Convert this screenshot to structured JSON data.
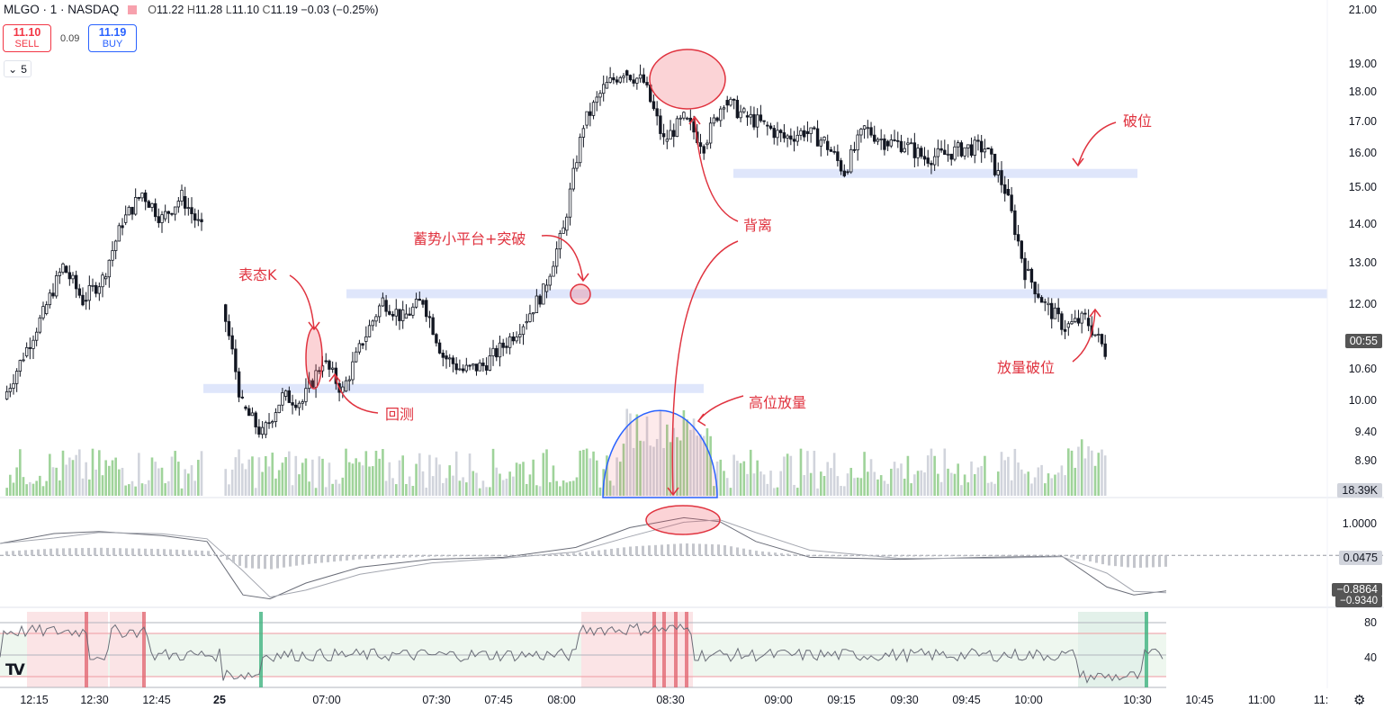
{
  "header": {
    "symbol": "MLGO · 1 · NASDAQ",
    "open_label": "O",
    "open": "11.22",
    "high_label": "H",
    "high": "11.28",
    "low_label": "L",
    "low": "11.10",
    "close_label": "C",
    "close": "11.19",
    "change": "−0.03 (−0.25%)"
  },
  "trade": {
    "sell_price": "11.10",
    "sell_label": "SELL",
    "spread": "0.09",
    "buy_price": "11.19",
    "buy_label": "BUY"
  },
  "collapse": {
    "icon": "chevron-down-icon",
    "count": "5"
  },
  "logo": "TV",
  "colors": {
    "up": "#26a69a",
    "down": "#ef5350",
    "candle": "#131722",
    "vol_up": "#9fd39a",
    "vol_down": "#d1d4dc",
    "annotation": "#e0333f",
    "level_band": "#dfe6fb",
    "blue_circle": "#2962ff"
  },
  "price_axis": {
    "ticks": [
      "21.00",
      "19.00",
      "18.00",
      "17.00",
      "16.00",
      "15.00",
      "14.00",
      "13.00",
      "12.00",
      "10.60",
      "10.00",
      "9.40",
      "8.90"
    ],
    "current_time_badge": "00:55",
    "volume_badge": "18.39K"
  },
  "macd_axis": {
    "ticks": [
      "1.0000"
    ],
    "hist_badge": "0.0475",
    "macd_badge": "−0.8864",
    "signal_badge": "−0.9340"
  },
  "rsi_axis": {
    "ticks": [
      "80",
      "40"
    ]
  },
  "time_axis": {
    "ticks": [
      "12:15",
      "12:30",
      "12:45",
      "25",
      "07:00",
      "07:30",
      "07:45",
      "08:00",
      "08:30",
      "09:00",
      "09:15",
      "09:30",
      "09:45",
      "10:00",
      "10:30",
      "10:45",
      "11:00",
      "11:"
    ]
  },
  "annotations": {
    "biaotai": "表态K",
    "huice": "回测",
    "xushi": "蓄势小平台+突破",
    "beili": "背离",
    "gaowei": "高位放量",
    "powei": "破位",
    "fangliang": "放量破位"
  },
  "chart_data": {
    "type": "candlestick",
    "symbol": "MLGO",
    "interval": "1",
    "exchange": "NASDAQ",
    "price_ylim": [
      8.6,
      21.0
    ],
    "price_scale": "log",
    "key_levels": [
      10.45,
      12.45,
      15.55
    ],
    "session_close_path": [
      [
        "12:05",
        10.25
      ],
      [
        "12:10",
        11.1
      ],
      [
        "12:15",
        12.0
      ],
      [
        "12:20",
        13.1
      ],
      [
        "12:25",
        12.3
      ],
      [
        "12:30",
        12.8
      ],
      [
        "12:35",
        14.2
      ],
      [
        "12:40",
        15.0
      ],
      [
        "12:45",
        14.3
      ],
      [
        "12:50",
        14.9
      ],
      [
        "12:55",
        14.0
      ],
      [
        "06:58",
        12.2
      ],
      [
        "07:00",
        10.1
      ],
      [
        "07:05",
        9.6
      ],
      [
        "07:10",
        10.3
      ],
      [
        "07:15",
        10.2
      ],
      [
        "07:20",
        11.0
      ],
      [
        "07:25",
        10.4
      ],
      [
        "07:30",
        11.4
      ],
      [
        "07:35",
        12.3
      ],
      [
        "07:40",
        11.9
      ],
      [
        "07:45",
        12.3
      ],
      [
        "07:50",
        11.1
      ],
      [
        "07:55",
        10.8
      ],
      [
        "08:00",
        10.9
      ],
      [
        "08:05",
        11.3
      ],
      [
        "08:10",
        11.8
      ],
      [
        "08:15",
        12.5
      ],
      [
        "08:20",
        14.0
      ],
      [
        "08:25",
        17.0
      ],
      [
        "08:30",
        18.2
      ],
      [
        "08:35",
        18.8
      ],
      [
        "08:40",
        18.4
      ],
      [
        "08:45",
        16.5
      ],
      [
        "08:50",
        17.2
      ],
      [
        "08:55",
        16.4
      ],
      [
        "09:00",
        17.8
      ],
      [
        "09:05",
        17.3
      ],
      [
        "09:10",
        17.0
      ],
      [
        "09:15",
        16.6
      ],
      [
        "09:20",
        16.8
      ],
      [
        "09:25",
        16.5
      ],
      [
        "09:30",
        15.6
      ],
      [
        "09:35",
        16.9
      ],
      [
        "09:40",
        16.5
      ],
      [
        "09:45",
        16.4
      ],
      [
        "09:50",
        16.0
      ],
      [
        "09:55",
        16.1
      ],
      [
        "10:00",
        16.3
      ],
      [
        "10:05",
        16.3
      ],
      [
        "10:10",
        15.1
      ],
      [
        "10:15",
        13.0
      ],
      [
        "10:20",
        12.2
      ],
      [
        "10:25",
        11.7
      ],
      [
        "10:30",
        11.9
      ],
      [
        "10:35",
        11.2
      ]
    ],
    "macd_ylim": [
      -1.2,
      1.3
    ],
    "macd_last": {
      "hist": 0.0475,
      "macd": -0.8864,
      "signal": -0.934
    },
    "rsi_ylim": [
      20,
      90
    ],
    "rsi_levels": [
      80,
      70,
      50,
      30,
      20
    ],
    "xlabel": "",
    "ylabel": "",
    "title": ""
  }
}
